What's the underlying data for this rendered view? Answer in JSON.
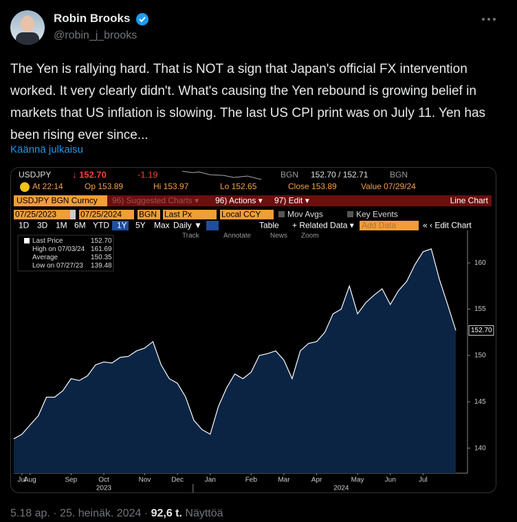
{
  "tweet": {
    "author": "Robin Brooks",
    "handle": "@robin_j_brooks",
    "text": "The Yen is rallying hard. That is NOT a sign that Japan's official FX intervention worked. It very clearly didn't. What's causing the Yen rebound is growing belief in markets that US inflation is slowing. The last US CPI print was on July 11. Yen has been rising ever since...",
    "translate": "Käännä julkaisu",
    "timestamp": "5.18 ap. · 25. heinäk. 2024 ·",
    "views": "92,6 t.",
    "views_label": "Näyttöä"
  },
  "terminal": {
    "row1": [
      "USDJPY",
      "↓ 152.70",
      "-1.19",
      "BGN",
      "152.70 / 152.71",
      "BGN"
    ],
    "row2": [
      "At 22:14",
      "Op 153.89",
      "Hi 153.97",
      "Lo 152.65",
      "Close 153.89",
      "Value 07/29/24"
    ],
    "row3": [
      "USDJPY BGN Curncy",
      "96) Suggested Charts ▾",
      "96) Actions ▾",
      "97) Edit ▾",
      "Line Chart"
    ],
    "row4": [
      "07/25/2023",
      "07/25/2024",
      "BGN",
      "Last Px",
      "Local CCY",
      "Mov Avgs",
      "Key Events"
    ],
    "periods": [
      "1D",
      "3D",
      "1M",
      "6M",
      "YTD",
      "1Y",
      "5Y",
      "Max"
    ],
    "row5": [
      "Daily ▼",
      "Table",
      "+ Related Data ▾",
      "Add Data",
      "« ‹ Edit Chart"
    ],
    "tools": [
      "Track",
      "Annotate",
      "News",
      "Zoom"
    ]
  },
  "chart_data": {
    "type": "area",
    "categories": [
      null,
      "Jul",
      "Aug",
      null,
      null,
      null,
      null,
      "Sep",
      null,
      null,
      null,
      "Oct",
      null,
      null,
      null,
      null,
      "Nov",
      null,
      null,
      null,
      "Dec",
      null,
      null,
      null,
      "Jan",
      null,
      null,
      null,
      null,
      "Feb",
      null,
      null,
      null,
      "Mar",
      null,
      null,
      null,
      "Apr",
      null,
      null,
      null,
      null,
      "May",
      null,
      null,
      null,
      "Jun",
      null,
      null,
      null,
      "Jul",
      null,
      null,
      null,
      null
    ],
    "year_labels": [
      "2023",
      "2024"
    ],
    "series": [
      {
        "name": "Last Price",
        "color": "#ffffff",
        "fill": "#0b2444",
        "values": [
          141.0,
          141.5,
          142.5,
          143.5,
          145.5,
          145.5,
          146.2,
          147.5,
          147.3,
          147.8,
          149.0,
          149.3,
          149.2,
          149.8,
          149.9,
          150.5,
          150.8,
          151.5,
          149.0,
          147.5,
          147.0,
          145.5,
          143.0,
          142.0,
          141.5,
          144.5,
          146.5,
          148.0,
          147.5,
          148.2,
          150.0,
          150.2,
          150.5,
          149.5,
          147.5,
          150.5,
          151.3,
          151.5,
          152.5,
          154.5,
          155.0,
          157.5,
          154.5,
          155.7,
          156.5,
          157.2,
          155.5,
          157.0,
          158.0,
          159.8,
          161.2,
          161.5,
          158.2,
          155.5,
          152.7
        ]
      }
    ],
    "last_value": "152.70",
    "legend_stats": [
      {
        "label": "High on 07/03/24",
        "value": "161.69"
      },
      {
        "label": "Average",
        "value": "150.35"
      },
      {
        "label": "Low on 07/27/23",
        "value": "139.48"
      }
    ],
    "ylim": [
      137.3,
      163.5
    ],
    "yticks": [
      140,
      145,
      150,
      155,
      160
    ]
  }
}
